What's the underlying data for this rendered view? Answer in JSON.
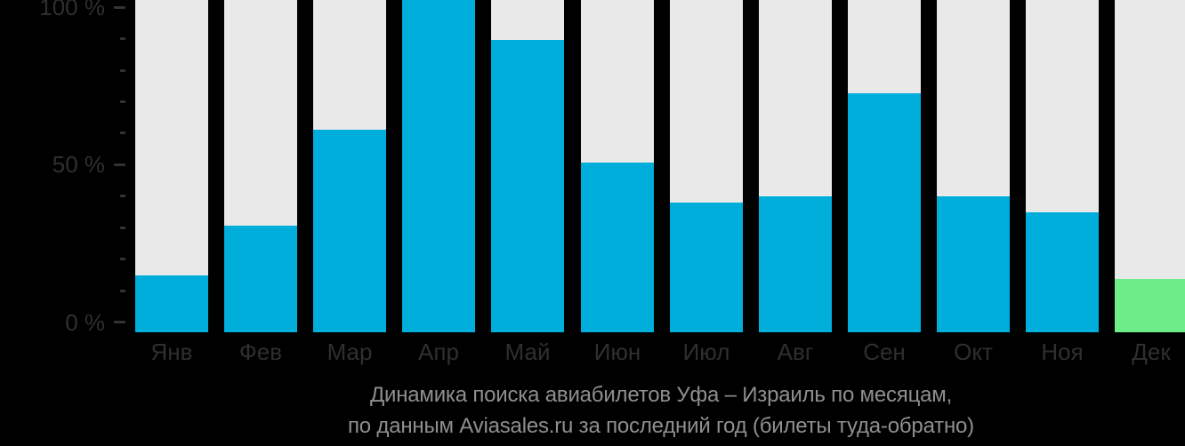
{
  "chart_data": {
    "type": "bar",
    "categories": [
      "Янв",
      "Фев",
      "Мар",
      "Апр",
      "Май",
      "Июн",
      "Июл",
      "Авг",
      "Сен",
      "Окт",
      "Ноя",
      "Дек"
    ],
    "values": [
      17,
      32,
      61,
      100,
      88,
      51,
      39,
      41,
      72,
      41,
      36,
      16
    ],
    "unit": "%",
    "highlight_index": 11,
    "title_lines": [
      "Динамика поиска авиабилетов Уфа – Израиль по месяцам,",
      "по данным Aviasales.ru за последний год (билеты туда-обратно)"
    ],
    "y_axis": {
      "min": 0,
      "max": 100,
      "tick_step": 10,
      "labeled_ticks": [
        {
          "value": 100,
          "label": "100 %"
        },
        {
          "value": 50,
          "label": "50 %"
        },
        {
          "value": 0,
          "label": "0 %"
        }
      ]
    },
    "grid": false,
    "legend": null,
    "colors": {
      "bar": "#00AEDC",
      "highlight_bar": "#6DED88",
      "track": "#E9E9E9",
      "background": "#000000",
      "axis_text": "#2F2F2F",
      "tick": "#333333",
      "caption_text": "#8F8F8F"
    }
  }
}
